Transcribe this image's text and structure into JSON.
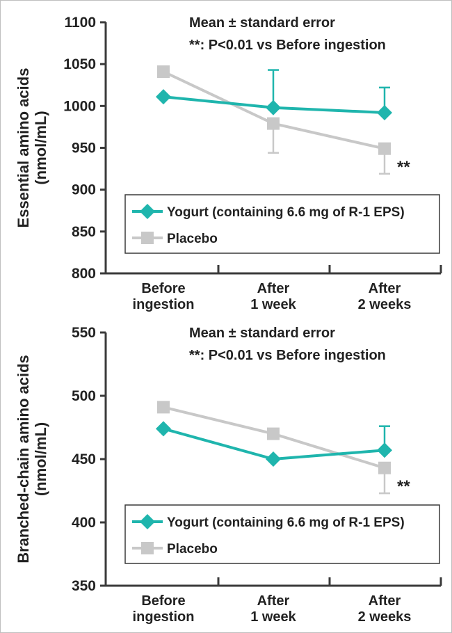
{
  "chart_data": [
    {
      "type": "line",
      "ylabel_lines": [
        "Essential amino acids",
        "(nmol/mL)"
      ],
      "categories": [
        [
          "Before",
          "ingestion"
        ],
        [
          "After",
          "1 week"
        ],
        [
          "After",
          "2 weeks"
        ]
      ],
      "ylim": [
        800,
        1100
      ],
      "yticks": [
        800,
        850,
        900,
        950,
        1000,
        1050,
        1100
      ],
      "notes": [
        "Mean ± standard error",
        "**: P<0.01 vs Before ingestion"
      ],
      "legend_position": "bottom",
      "series": [
        {
          "name": "Yogurt (containing 6.6 mg of R-1 EPS)",
          "color": "#1fb5ad",
          "marker": "diamond",
          "values": [
            1011,
            998,
            992
          ],
          "error": [
            null,
            45,
            30
          ]
        },
        {
          "name": "Placebo",
          "color": "#c8c8c8",
          "marker": "square",
          "values": [
            1041,
            979,
            949
          ],
          "error": [
            null,
            35,
            30
          ]
        }
      ],
      "significance": [
        {
          "category_index": 2,
          "label": "**"
        }
      ]
    },
    {
      "type": "line",
      "ylabel_lines": [
        "Branched-chain amino acids",
        "(nmol/mL)"
      ],
      "categories": [
        [
          "Before",
          "ingestion"
        ],
        [
          "After",
          "1 week"
        ],
        [
          "After",
          "2 weeks"
        ]
      ],
      "ylim": [
        350,
        550
      ],
      "yticks": [
        350,
        400,
        450,
        500,
        550
      ],
      "notes": [
        "Mean ± standard error",
        "**: P<0.01 vs Before ingestion"
      ],
      "legend_position": "bottom",
      "series": [
        {
          "name": "Yogurt (containing 6.6 mg of R-1 EPS)",
          "color": "#1fb5ad",
          "marker": "diamond",
          "values": [
            474,
            450,
            457
          ],
          "error": [
            null,
            null,
            19
          ]
        },
        {
          "name": "Placebo",
          "color": "#c8c8c8",
          "marker": "square",
          "values": [
            491,
            470,
            443
          ],
          "error": [
            null,
            null,
            20
          ]
        }
      ],
      "significance": [
        {
          "category_index": 2,
          "label": "**"
        }
      ]
    }
  ]
}
